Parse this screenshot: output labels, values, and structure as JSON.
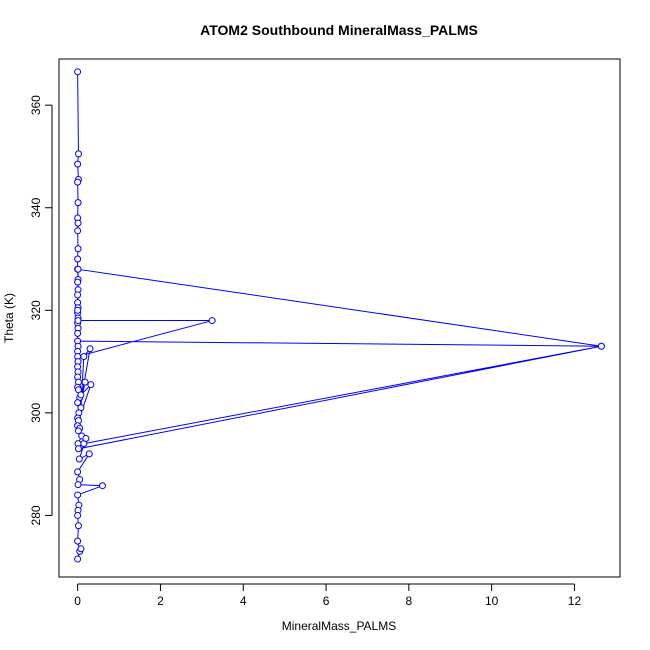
{
  "chart_data": {
    "type": "line",
    "title": "ATOM2 Southbound MineralMass_PALMS",
    "xlabel": "MineralMass_PALMS",
    "ylabel": "Theta (K)",
    "xlim": [
      -0.45,
      13.1
    ],
    "ylim": [
      268,
      369
    ],
    "x_ticks": [
      "0",
      "2",
      "4",
      "6",
      "8",
      "10",
      "12"
    ],
    "y_ticks": [
      "280",
      "300",
      "320",
      "340",
      "360"
    ],
    "grid": false,
    "legend": "none",
    "colors": {
      "series": "#0000ff",
      "axis": "#000000"
    },
    "series": [
      {
        "x": [
          0.0,
          0.02,
          0.0,
          0.02,
          0.0,
          0.01,
          0.0,
          0.01,
          0.0,
          0.01,
          0.0,
          0.0,
          0.01,
          0.0,
          0.01,
          0.0,
          0.0,
          0.01,
          0.0,
          0.01,
          0.0,
          0.01,
          0.0,
          0.01,
          12.65,
          0.0,
          0.01,
          0.0,
          0.0,
          0.01,
          3.25,
          0.0,
          0.01,
          0.0,
          0.01,
          0.0,
          0.02,
          0.0,
          0.02,
          0.05,
          0.0,
          0.08,
          0.15,
          0.3,
          0.03,
          0.18,
          0.0,
          0.02,
          0.32,
          0.08,
          0.0,
          0.05,
          0.02,
          0.1,
          0.01,
          0.15,
          12.65,
          0.02,
          0.2,
          0.04,
          0.28,
          0.0,
          0.05,
          0.01,
          0.6,
          0.0,
          0.03,
          0.01,
          0.0,
          0.02,
          0.0,
          0.05,
          0.0,
          0.08
        ],
        "y": [
          366.5,
          350.5,
          348.5,
          345.5,
          345.0,
          341.0,
          338.0,
          337.0,
          335.5,
          332.0,
          330.0,
          328.0,
          326.0,
          325.5,
          324.0,
          323.0,
          321.5,
          320.5,
          319.5,
          318.5,
          317.5,
          316.5,
          315.5,
          328.0,
          313.0,
          314.0,
          313.0,
          312.0,
          320.0,
          318.0,
          318.0,
          311.0,
          310.0,
          309.0,
          308.0,
          307.0,
          306.0,
          305.0,
          304.5,
          303.0,
          302.0,
          301.0,
          311.0,
          312.5,
          300.0,
          306.0,
          299.0,
          298.5,
          305.5,
          303.5,
          297.5,
          297.0,
          296.5,
          295.5,
          294.0,
          294.0,
          313.0,
          293.0,
          295.0,
          291.0,
          292.0,
          288.5,
          287.0,
          286.0,
          285.8,
          284.0,
          282.0,
          281.0,
          280.0,
          278.0,
          275.0,
          273.0,
          271.5,
          273.5
        ]
      }
    ]
  }
}
